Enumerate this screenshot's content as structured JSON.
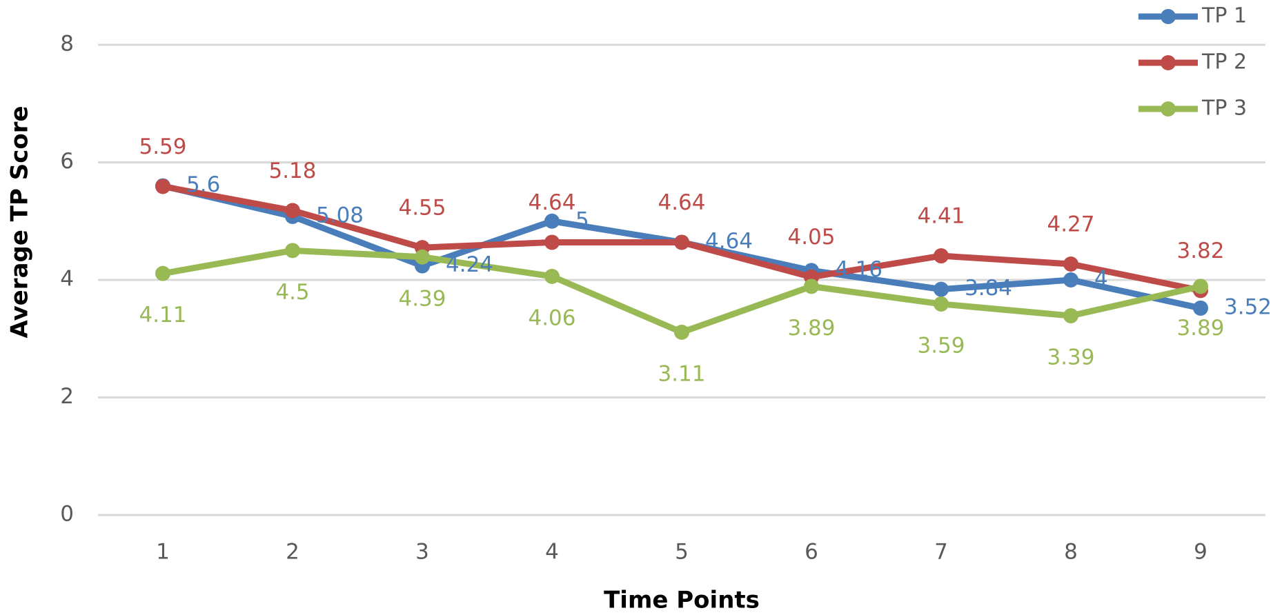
{
  "chart_data": {
    "type": "line",
    "x_label": "Time Points",
    "y_label": "Average TP Score",
    "categories": [
      "1",
      "2",
      "3",
      "4",
      "5",
      "6",
      "7",
      "8",
      "9"
    ],
    "series": [
      {
        "name": "TP 1",
        "color": "#4a7ebb",
        "values": [
          5.6,
          5.08,
          4.24,
          5,
          4.64,
          4.16,
          3.84,
          4,
          3.52
        ]
      },
      {
        "name": "TP 2",
        "color": "#be4b48",
        "values": [
          5.59,
          5.18,
          4.55,
          4.64,
          4.64,
          4.05,
          4.41,
          4.27,
          3.82
        ]
      },
      {
        "name": "TP 3",
        "color": "#98b954",
        "values": [
          4.11,
          4.5,
          4.39,
          4.06,
          3.11,
          3.89,
          3.59,
          3.39,
          3.89
        ]
      }
    ],
    "ylim": [
      0,
      8
    ],
    "yticks": [
      0,
      2,
      4,
      6,
      8
    ],
    "grid": true,
    "legend": "top-right"
  }
}
